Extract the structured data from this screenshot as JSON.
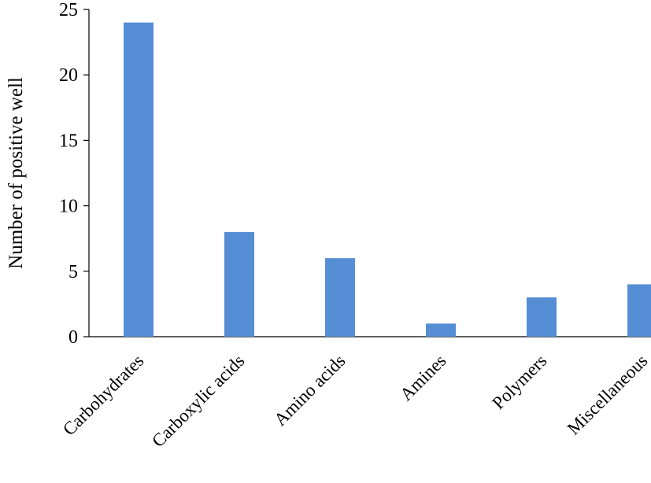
{
  "chart_data": {
    "type": "bar",
    "title": "",
    "xlabel": "",
    "ylabel": "Number of positive well",
    "categories": [
      "Carbohydrates",
      "Carboxylic acids",
      "Amino acids",
      "Amines",
      "Polymers",
      "Miscellaneous"
    ],
    "values": [
      24,
      8,
      6,
      1,
      3,
      4
    ],
    "ylim": [
      0,
      25
    ],
    "yticks": [
      "0",
      "5",
      "10",
      "15",
      "20",
      "25"
    ],
    "grid": false,
    "legend": "none",
    "bar_color": "#558ED5"
  }
}
